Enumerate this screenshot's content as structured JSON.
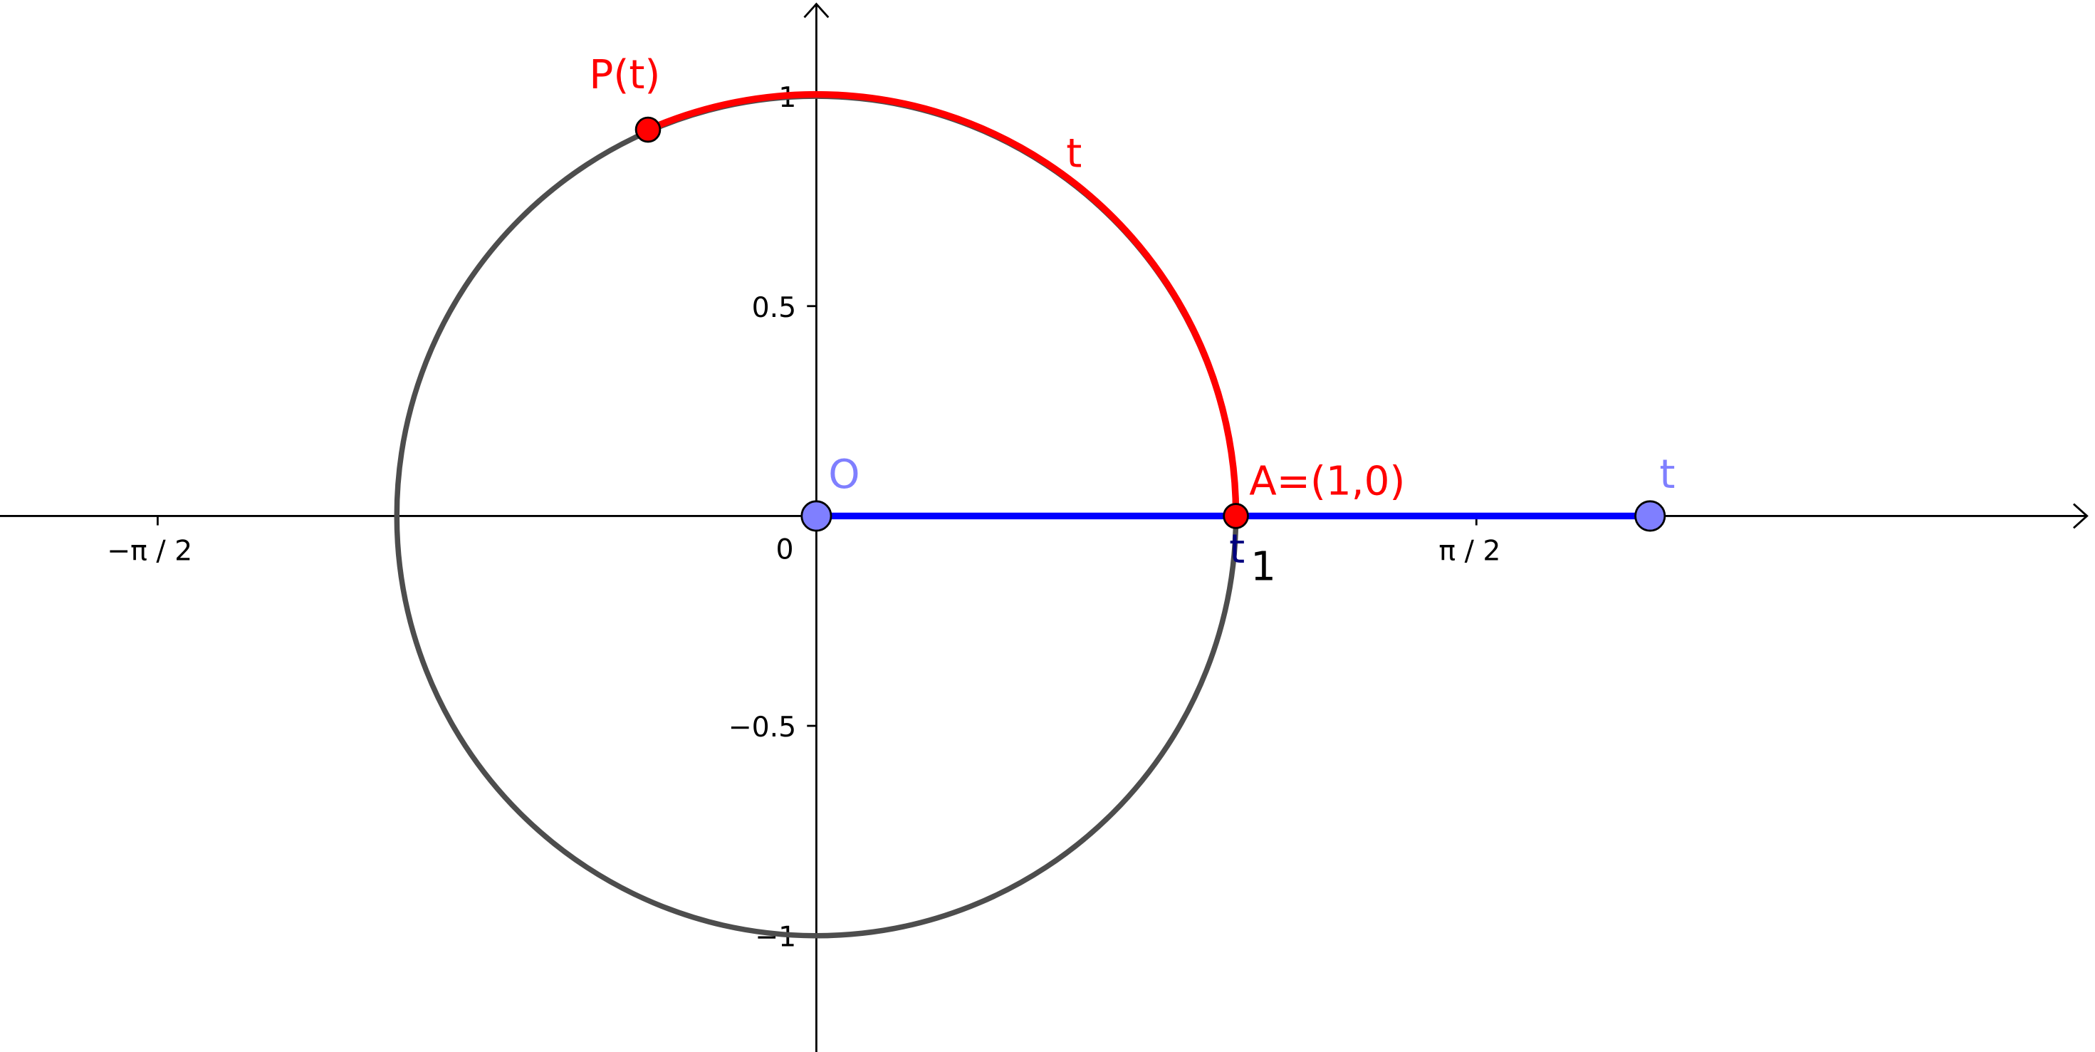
{
  "axes": {
    "origin": "0",
    "x_ticks": [
      "−π / 2",
      "π / 2",
      "1"
    ],
    "y_ticks": [
      "1",
      "0.5",
      "−0.5",
      "−1"
    ]
  },
  "labels": {
    "p": "P(t)",
    "arc": "t",
    "o": "O",
    "a": "A=(1,0)",
    "end": "t",
    "foot": "t"
  }
}
